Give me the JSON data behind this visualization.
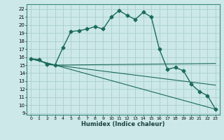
{
  "xlabel": "Humidex (Indice chaleur)",
  "bg_color": "#cce8e8",
  "grid_color": "#aacece",
  "line_color": "#1a6b5a",
  "xlim": [
    -0.5,
    23.5
  ],
  "ylim": [
    8.8,
    22.6
  ],
  "xticks": [
    0,
    1,
    2,
    3,
    4,
    5,
    6,
    7,
    8,
    9,
    10,
    11,
    12,
    13,
    14,
    15,
    16,
    17,
    18,
    19,
    20,
    21,
    22,
    23
  ],
  "yticks": [
    9,
    10,
    11,
    12,
    13,
    14,
    15,
    16,
    17,
    18,
    19,
    20,
    21,
    22
  ],
  "main_x": [
    0,
    1,
    2,
    3,
    4,
    5,
    6,
    7,
    8,
    9,
    10,
    11,
    12,
    13,
    14,
    15,
    16,
    17,
    18,
    19,
    20,
    21,
    22,
    23
  ],
  "main_y": [
    15.8,
    15.7,
    15.1,
    15.0,
    17.2,
    19.2,
    19.3,
    19.5,
    19.8,
    19.5,
    21.0,
    21.8,
    21.2,
    20.7,
    21.6,
    21.0,
    17.0,
    14.5,
    14.7,
    14.3,
    12.6,
    11.7,
    11.2,
    9.5
  ],
  "fan_lines": [
    {
      "x": [
        0,
        3,
        23
      ],
      "y": [
        15.8,
        15.0,
        9.5
      ]
    },
    {
      "x": [
        0,
        3,
        23
      ],
      "y": [
        15.8,
        15.0,
        12.5
      ]
    },
    {
      "x": [
        0,
        3,
        23
      ],
      "y": [
        15.8,
        15.0,
        15.2
      ]
    }
  ]
}
